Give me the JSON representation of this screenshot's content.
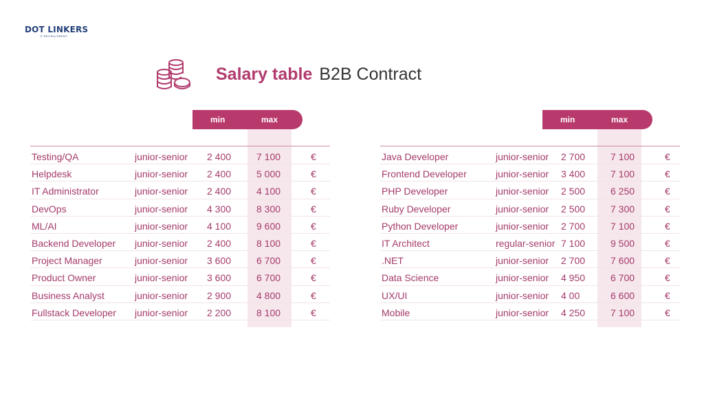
{
  "brand": {
    "name": "DOT LINKERS",
    "tagline": "IT RECRUITMENT",
    "color": "#23407a"
  },
  "title": {
    "main": "Salary table",
    "sub": "B2B Contract"
  },
  "colors": {
    "accent": "#b83a6c",
    "band": "#f6e7ec",
    "text": "#a43a6a"
  },
  "icons": {
    "title_icon": "coins-stack-icon"
  },
  "left_table": {
    "header": {
      "min": "min",
      "max": "max"
    },
    "rows": [
      {
        "role": "Testing/QA",
        "level": "junior-senior",
        "min": "2 400",
        "max": "7 100",
        "currency": "€"
      },
      {
        "role": "Helpdesk",
        "level": "junior-senior",
        "min": "2 400",
        "max": "5 000",
        "currency": "€"
      },
      {
        "role": "IT Administrator",
        "level": "junior-senior",
        "min": "2 400",
        "max": "4 100",
        "currency": "€"
      },
      {
        "role": "DevOps",
        "level": "junior-senior",
        "min": "4 300",
        "max": "8 300",
        "currency": "€"
      },
      {
        "role": "ML/AI",
        "level": "junior-senior",
        "min": "4 100",
        "max": "9 600",
        "currency": "€"
      },
      {
        "role": "Backend Developer",
        "level": "junior-senior",
        "min": "2 400",
        "max": "8 100",
        "currency": "€"
      },
      {
        "role": "Project Manager",
        "level": "junior-senior",
        "min": "3 600",
        "max": "6 700",
        "currency": "€"
      },
      {
        "role": "Product Owner",
        "level": "junior-senior",
        "min": "3 600",
        "max": "6 700",
        "currency": "€"
      },
      {
        "role": "Business Analyst",
        "level": "junior-senior",
        "min": "2 900",
        "max": "4 800",
        "currency": "€"
      },
      {
        "role": "Fullstack Developer",
        "level": "junior-senior",
        "min": "2 200",
        "max": "8 100",
        "currency": "€"
      }
    ]
  },
  "right_table": {
    "header": {
      "min": "min",
      "max": "max"
    },
    "rows": [
      {
        "role": "Java Developer",
        "level": "junior-senior",
        "min": "2 700",
        "max": "7 100",
        "currency": "€"
      },
      {
        "role": "Frontend Developer",
        "level": "junior-senior",
        "min": "3 400",
        "max": "7 100",
        "currency": "€"
      },
      {
        "role": "PHP Developer",
        "level": "junior-senior",
        "min": "2 500",
        "max": "6 250",
        "currency": "€"
      },
      {
        "role": "Ruby Developer",
        "level": "junior-senior",
        "min": "2 500",
        "max": "7 300",
        "currency": "€"
      },
      {
        "role": "Python Developer",
        "level": "junior-senior",
        "min": "2 700",
        "max": "7 100",
        "currency": "€"
      },
      {
        "role": "IT Architect",
        "level": "regular-senior",
        "min": "7 100",
        "max": "9 500",
        "currency": "€"
      },
      {
        "role": ".NET",
        "level": "junior-senior",
        "min": "2 700",
        "max": "7 600",
        "currency": "€"
      },
      {
        "role": "Data Science",
        "level": "junior-senior",
        "min": "4 950",
        "max": "6 700",
        "currency": "€"
      },
      {
        "role": "UX/UI",
        "level": "junior-senior",
        "min": "4 00",
        "max": "6 600",
        "currency": "€"
      },
      {
        "role": "Mobile",
        "level": "junior-senior",
        "min": "4 250",
        "max": "7 100",
        "currency": "€"
      }
    ]
  }
}
